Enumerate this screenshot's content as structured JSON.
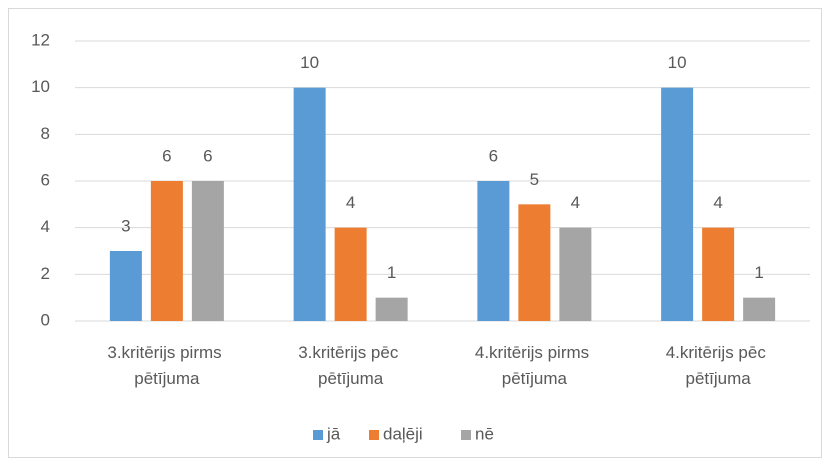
{
  "chart_data": {
    "type": "bar",
    "categories": [
      "3.kritērijs pirms pētījuma",
      "3.kritērijs pēc pētījuma",
      "4.kritērijs pirms pētījuma",
      "4.kritērijs pēc pētījuma"
    ],
    "series": [
      {
        "name": "jā",
        "color": "#5b9bd5",
        "values": [
          3,
          10,
          6,
          10
        ]
      },
      {
        "name": "daļēji",
        "color": "#ed7d31",
        "values": [
          6,
          4,
          5,
          4
        ]
      },
      {
        "name": "nē",
        "color": "#a5a5a5",
        "values": [
          6,
          1,
          4,
          1
        ]
      }
    ],
    "ylim": [
      0,
      12
    ],
    "yticks": [
      0,
      2,
      4,
      6,
      8,
      10,
      12
    ],
    "grid": true,
    "legend": "bottom"
  }
}
